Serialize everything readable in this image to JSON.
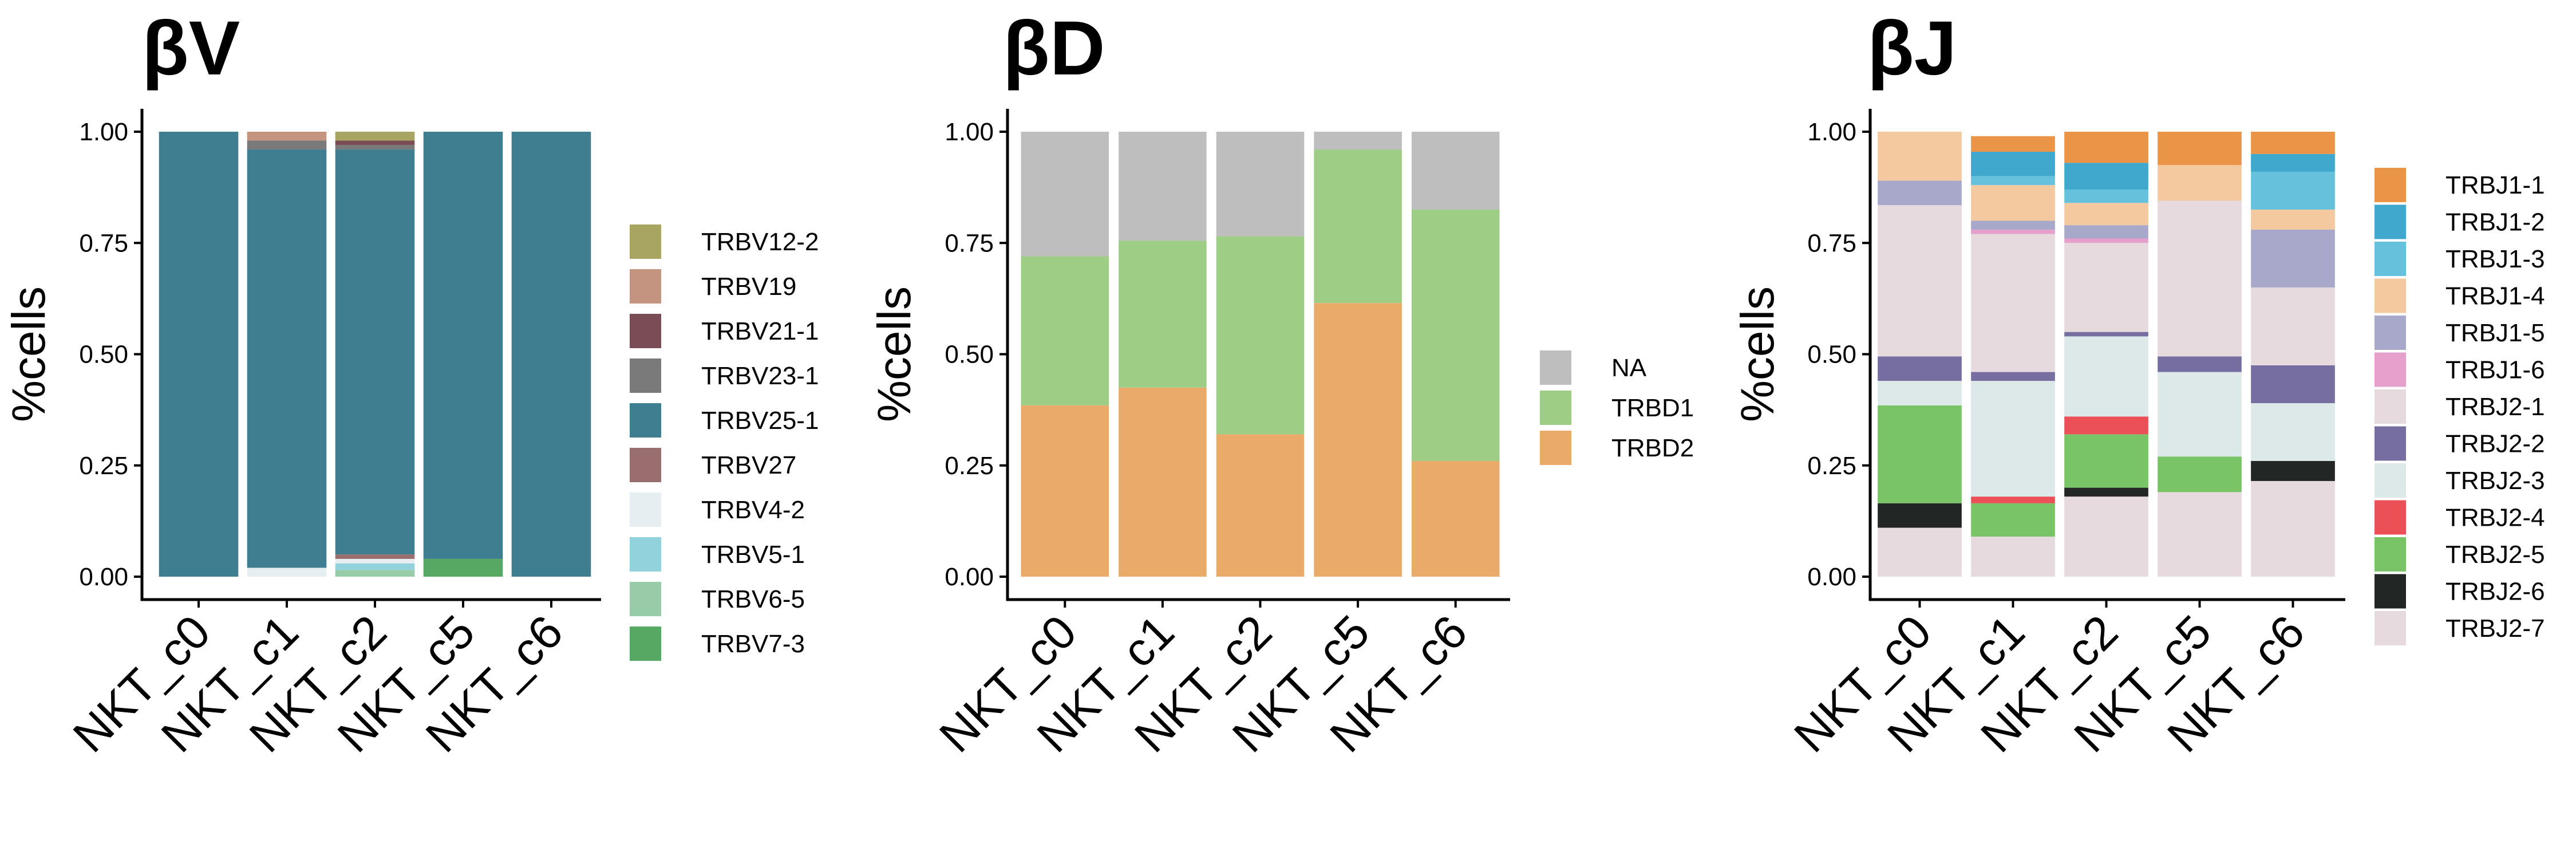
{
  "colors": {
    "TRBV12-2": "#a8a462",
    "TRBV19": "#c49480",
    "TRBV21-1": "#7a4d56",
    "TRBV23-1": "#7a7a7a",
    "TRBV25-1": "#3e7e90",
    "TRBV27": "#9a6e6e",
    "TRBV4-2": "#e6eef2",
    "TRBV5-1": "#92d2dc",
    "TRBV6-5": "#98cca8",
    "TRBV7-3": "#56a862",
    "NA": "#bebebe",
    "TRBD1": "#9ecd86",
    "TRBD2": "#eaaa6a",
    "TRBJ1-1": "#ea9448",
    "TRBJ1-2": "#40a8cc",
    "TRBJ1-3": "#66c2dc",
    "TRBJ1-4": "#f5c9a0",
    "TRBJ1-5": "#a8a8ca",
    "TRBJ1-6": "#e6a0cc",
    "TRBJ2-1": "#e6dadf",
    "TRBJ2-2": "#766ea0",
    "TRBJ2-3": "#dde8e8",
    "TRBJ2-4": "#ea5056",
    "TRBJ2-5": "#78c466",
    "TRBJ2-6": "#222625",
    "TRBJ2-7": "#e6dadf"
  },
  "chart_data": [
    {
      "type": "bar",
      "stacked": true,
      "title": "βV",
      "xlabel": "",
      "ylabel": "%cells",
      "ylim": [
        0,
        1
      ],
      "yticks": [
        "0.00",
        "0.25",
        "0.50",
        "0.75",
        "1.00"
      ],
      "categories": [
        "NKT_c0",
        "NKT_c1",
        "NKT_c2",
        "NKT_c5",
        "NKT_c6"
      ],
      "legend_position": "right",
      "series": [
        {
          "name": "TRBV7-3",
          "values": [
            0,
            0,
            0,
            0.04,
            0
          ]
        },
        {
          "name": "TRBV6-5",
          "values": [
            0,
            0,
            0.015,
            0,
            0
          ]
        },
        {
          "name": "TRBV5-1",
          "values": [
            0,
            0,
            0.015,
            0,
            0
          ]
        },
        {
          "name": "TRBV4-2",
          "values": [
            0,
            0.02,
            0.01,
            0,
            0
          ]
        },
        {
          "name": "TRBV27",
          "values": [
            0,
            0,
            0.01,
            0,
            0
          ]
        },
        {
          "name": "TRBV25-1",
          "values": [
            1,
            0.94,
            0.91,
            0.96,
            1
          ]
        },
        {
          "name": "TRBV23-1",
          "values": [
            0,
            0.02,
            0.01,
            0,
            0
          ]
        },
        {
          "name": "TRBV21-1",
          "values": [
            0,
            0,
            0.01,
            0,
            0
          ]
        },
        {
          "name": "TRBV19",
          "values": [
            0,
            0.02,
            0,
            0,
            0
          ]
        },
        {
          "name": "TRBV12-2",
          "values": [
            0,
            0,
            0.02,
            0,
            0
          ]
        }
      ],
      "legend": [
        "TRBV12-2",
        "TRBV19",
        "TRBV21-1",
        "TRBV23-1",
        "TRBV25-1",
        "TRBV27",
        "TRBV4-2",
        "TRBV5-1",
        "TRBV6-5",
        "TRBV7-3"
      ]
    },
    {
      "type": "bar",
      "stacked": true,
      "title": "βD",
      "xlabel": "",
      "ylabel": "%cells",
      "ylim": [
        0,
        1
      ],
      "yticks": [
        "0.00",
        "0.25",
        "0.50",
        "0.75",
        "1.00"
      ],
      "categories": [
        "NKT_c0",
        "NKT_c1",
        "NKT_c2",
        "NKT_c5",
        "NKT_c6"
      ],
      "legend_position": "right",
      "series": [
        {
          "name": "TRBD2",
          "values": [
            0.385,
            0.425,
            0.32,
            0.615,
            0.26
          ]
        },
        {
          "name": "TRBD1",
          "values": [
            0.335,
            0.33,
            0.445,
            0.345,
            0.565
          ]
        },
        {
          "name": "NA",
          "values": [
            0.28,
            0.245,
            0.235,
            0.04,
            0.175
          ]
        }
      ],
      "legend": [
        "NA",
        "TRBD1",
        "TRBD2"
      ]
    },
    {
      "type": "bar",
      "stacked": true,
      "title": "βJ",
      "xlabel": "",
      "ylabel": "%cells",
      "ylim": [
        0,
        1
      ],
      "yticks": [
        "0.00",
        "0.25",
        "0.50",
        "0.75",
        "1.00"
      ],
      "categories": [
        "NKT_c0",
        "NKT_c1",
        "NKT_c2",
        "NKT_c5",
        "NKT_c6"
      ],
      "legend_position": "right",
      "series": [
        {
          "name": "TRBJ2-7",
          "values": [
            0.11,
            0.09,
            0.18,
            0.19,
            0.215
          ]
        },
        {
          "name": "TRBJ2-6",
          "values": [
            0.055,
            0,
            0.02,
            0,
            0.045
          ]
        },
        {
          "name": "TRBJ2-5",
          "values": [
            0.22,
            0.075,
            0.12,
            0.08,
            0
          ]
        },
        {
          "name": "TRBJ2-4",
          "values": [
            0,
            0.015,
            0.04,
            0,
            0
          ]
        },
        {
          "name": "TRBJ2-3",
          "values": [
            0.055,
            0.26,
            0.18,
            0.19,
            0.13
          ]
        },
        {
          "name": "TRBJ2-2",
          "values": [
            0.055,
            0.02,
            0.01,
            0.035,
            0.085
          ]
        },
        {
          "name": "TRBJ2-1",
          "values": [
            0.34,
            0.31,
            0.2,
            0.35,
            0.175
          ]
        },
        {
          "name": "TRBJ1-6",
          "values": [
            0,
            0.01,
            0.01,
            0,
            0
          ]
        },
        {
          "name": "TRBJ1-5",
          "values": [
            0.055,
            0.02,
            0.03,
            0,
            0.13
          ]
        },
        {
          "name": "TRBJ1-4",
          "values": [
            0.11,
            0.08,
            0.05,
            0.08,
            0.045
          ]
        },
        {
          "name": "TRBJ1-3",
          "values": [
            0,
            0.02,
            0.03,
            0,
            0.085
          ]
        },
        {
          "name": "TRBJ1-2",
          "values": [
            0,
            0.055,
            0.06,
            0,
            0.04
          ]
        },
        {
          "name": "TRBJ1-1",
          "values": [
            0,
            0.035,
            0.07,
            0.075,
            0.05
          ]
        }
      ],
      "legend": [
        "TRBJ1-1",
        "TRBJ1-2",
        "TRBJ1-3",
        "TRBJ1-4",
        "TRBJ1-5",
        "TRBJ1-6",
        "TRBJ2-1",
        "TRBJ2-2",
        "TRBJ2-3",
        "TRBJ2-4",
        "TRBJ2-5",
        "TRBJ2-6",
        "TRBJ2-7"
      ]
    }
  ]
}
